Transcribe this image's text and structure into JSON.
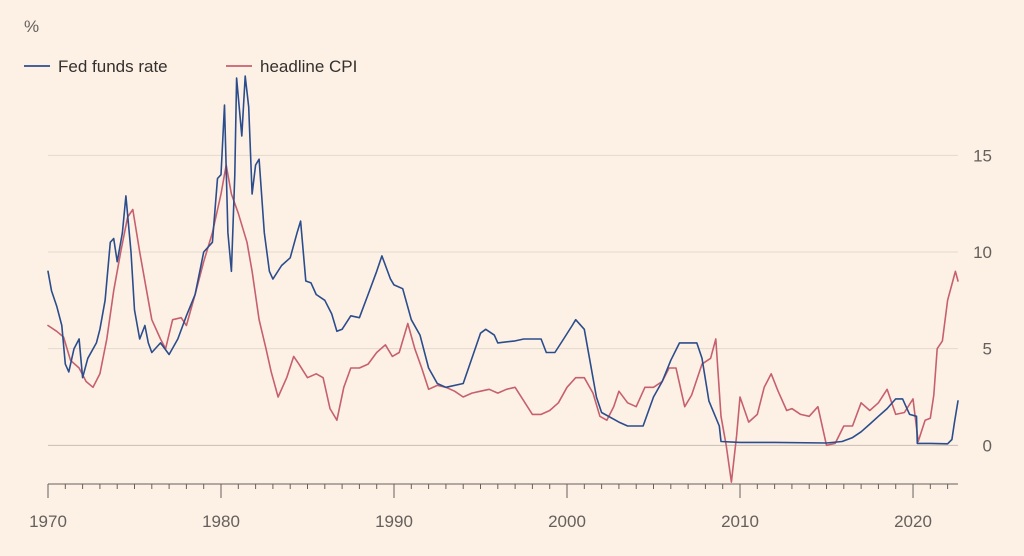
{
  "chart_data": {
    "type": "line",
    "unit_label": "%",
    "x_range": [
      1970,
      2022.6
    ],
    "ylim": [
      -2,
      19
    ],
    "y_ticks": [
      0,
      5,
      10,
      15
    ],
    "x_ticks": [
      1970,
      1980,
      1990,
      2000,
      2010,
      2020
    ],
    "grid": true,
    "legend_position": "top-left",
    "series": [
      {
        "name": "Fed funds rate",
        "color": "#2b4d8c",
        "points": [
          [
            1970.0,
            9.0
          ],
          [
            1970.2,
            8.0
          ],
          [
            1970.5,
            7.2
          ],
          [
            1970.8,
            6.2
          ],
          [
            1971.0,
            4.2
          ],
          [
            1971.2,
            3.8
          ],
          [
            1971.5,
            5.0
          ],
          [
            1971.8,
            5.5
          ],
          [
            1972.0,
            3.5
          ],
          [
            1972.3,
            4.5
          ],
          [
            1972.8,
            5.3
          ],
          [
            1973.0,
            6.0
          ],
          [
            1973.3,
            7.5
          ],
          [
            1973.6,
            10.5
          ],
          [
            1973.8,
            10.7
          ],
          [
            1974.0,
            9.5
          ],
          [
            1974.3,
            11.0
          ],
          [
            1974.5,
            12.9
          ],
          [
            1974.8,
            10.0
          ],
          [
            1975.0,
            7.0
          ],
          [
            1975.3,
            5.5
          ],
          [
            1975.6,
            6.2
          ],
          [
            1975.8,
            5.3
          ],
          [
            1976.0,
            4.8
          ],
          [
            1976.5,
            5.3
          ],
          [
            1977.0,
            4.7
          ],
          [
            1977.5,
            5.5
          ],
          [
            1978.0,
            6.7
          ],
          [
            1978.5,
            7.8
          ],
          [
            1979.0,
            10.0
          ],
          [
            1979.5,
            10.5
          ],
          [
            1979.8,
            13.8
          ],
          [
            1980.0,
            14.0
          ],
          [
            1980.2,
            17.6
          ],
          [
            1980.4,
            11.0
          ],
          [
            1980.6,
            9.0
          ],
          [
            1980.8,
            14.0
          ],
          [
            1980.9,
            19.0
          ],
          [
            1981.2,
            16.0
          ],
          [
            1981.4,
            19.1
          ],
          [
            1981.6,
            17.5
          ],
          [
            1981.8,
            13.0
          ],
          [
            1982.0,
            14.5
          ],
          [
            1982.2,
            14.8
          ],
          [
            1982.5,
            11.0
          ],
          [
            1982.8,
            9.0
          ],
          [
            1983.0,
            8.6
          ],
          [
            1983.5,
            9.3
          ],
          [
            1984.0,
            9.7
          ],
          [
            1984.4,
            11.0
          ],
          [
            1984.6,
            11.6
          ],
          [
            1984.9,
            8.5
          ],
          [
            1985.2,
            8.4
          ],
          [
            1985.5,
            7.8
          ],
          [
            1986.0,
            7.5
          ],
          [
            1986.4,
            6.8
          ],
          [
            1986.7,
            5.9
          ],
          [
            1987.0,
            6.0
          ],
          [
            1987.5,
            6.7
          ],
          [
            1988.0,
            6.6
          ],
          [
            1988.5,
            7.8
          ],
          [
            1989.0,
            9.0
          ],
          [
            1989.3,
            9.8
          ],
          [
            1989.8,
            8.6
          ],
          [
            1990.0,
            8.3
          ],
          [
            1990.5,
            8.1
          ],
          [
            1991.0,
            6.5
          ],
          [
            1991.5,
            5.7
          ],
          [
            1992.0,
            4.0
          ],
          [
            1992.5,
            3.2
          ],
          [
            1993.0,
            3.0
          ],
          [
            1994.0,
            3.2
          ],
          [
            1994.5,
            4.5
          ],
          [
            1995.0,
            5.8
          ],
          [
            1995.3,
            6.0
          ],
          [
            1995.8,
            5.7
          ],
          [
            1996.0,
            5.3
          ],
          [
            1997.0,
            5.4
          ],
          [
            1997.5,
            5.5
          ],
          [
            1998.5,
            5.5
          ],
          [
            1998.8,
            4.8
          ],
          [
            1999.3,
            4.8
          ],
          [
            1999.8,
            5.5
          ],
          [
            2000.3,
            6.2
          ],
          [
            2000.5,
            6.5
          ],
          [
            2001.0,
            6.0
          ],
          [
            2001.3,
            4.5
          ],
          [
            2001.7,
            2.5
          ],
          [
            2002.0,
            1.7
          ],
          [
            2003.0,
            1.2
          ],
          [
            2003.5,
            1.0
          ],
          [
            2004.4,
            1.0
          ],
          [
            2005.0,
            2.5
          ],
          [
            2005.5,
            3.3
          ],
          [
            2006.0,
            4.4
          ],
          [
            2006.5,
            5.3
          ],
          [
            2007.5,
            5.3
          ],
          [
            2007.8,
            4.5
          ],
          [
            2008.2,
            2.3
          ],
          [
            2008.8,
            1.0
          ],
          [
            2008.9,
            0.2
          ],
          [
            2010.0,
            0.15
          ],
          [
            2012.0,
            0.15
          ],
          [
            2015.0,
            0.12
          ],
          [
            2015.9,
            0.2
          ],
          [
            2016.5,
            0.4
          ],
          [
            2017.0,
            0.7
          ],
          [
            2017.5,
            1.1
          ],
          [
            2018.0,
            1.5
          ],
          [
            2018.5,
            1.9
          ],
          [
            2019.0,
            2.4
          ],
          [
            2019.4,
            2.4
          ],
          [
            2019.8,
            1.6
          ],
          [
            2020.2,
            1.5
          ],
          [
            2020.25,
            0.1
          ],
          [
            2021.0,
            0.1
          ],
          [
            2022.0,
            0.08
          ],
          [
            2022.25,
            0.3
          ],
          [
            2022.4,
            1.2
          ],
          [
            2022.6,
            2.3
          ]
        ]
      },
      {
        "name": "headline CPI",
        "color": "#c7606e",
        "points": [
          [
            1970.0,
            6.2
          ],
          [
            1970.5,
            5.9
          ],
          [
            1970.9,
            5.6
          ],
          [
            1971.3,
            4.4
          ],
          [
            1971.8,
            4.0
          ],
          [
            1972.2,
            3.3
          ],
          [
            1972.6,
            3.0
          ],
          [
            1973.0,
            3.7
          ],
          [
            1973.4,
            5.5
          ],
          [
            1973.8,
            8.0
          ],
          [
            1974.2,
            10.0
          ],
          [
            1974.6,
            11.8
          ],
          [
            1974.9,
            12.2
          ],
          [
            1975.3,
            10.0
          ],
          [
            1975.7,
            8.0
          ],
          [
            1976.0,
            6.5
          ],
          [
            1976.5,
            5.5
          ],
          [
            1976.8,
            5.0
          ],
          [
            1977.2,
            6.5
          ],
          [
            1977.7,
            6.6
          ],
          [
            1978.0,
            6.2
          ],
          [
            1978.5,
            7.8
          ],
          [
            1979.0,
            9.5
          ],
          [
            1979.5,
            11.0
          ],
          [
            1980.0,
            13.0
          ],
          [
            1980.3,
            14.5
          ],
          [
            1980.6,
            13.0
          ],
          [
            1981.0,
            12.0
          ],
          [
            1981.5,
            10.5
          ],
          [
            1981.8,
            9.0
          ],
          [
            1982.2,
            6.5
          ],
          [
            1982.6,
            5.0
          ],
          [
            1982.9,
            3.8
          ],
          [
            1983.3,
            2.5
          ],
          [
            1983.8,
            3.5
          ],
          [
            1984.2,
            4.6
          ],
          [
            1984.5,
            4.2
          ],
          [
            1985.0,
            3.5
          ],
          [
            1985.5,
            3.7
          ],
          [
            1985.9,
            3.5
          ],
          [
            1986.3,
            1.9
          ],
          [
            1986.7,
            1.3
          ],
          [
            1987.1,
            3.0
          ],
          [
            1987.5,
            4.0
          ],
          [
            1988.0,
            4.0
          ],
          [
            1988.5,
            4.2
          ],
          [
            1989.0,
            4.8
          ],
          [
            1989.5,
            5.2
          ],
          [
            1989.9,
            4.6
          ],
          [
            1990.3,
            4.8
          ],
          [
            1990.8,
            6.3
          ],
          [
            1991.2,
            5.0
          ],
          [
            1991.6,
            4.0
          ],
          [
            1992.0,
            2.9
          ],
          [
            1992.5,
            3.1
          ],
          [
            1993.0,
            3.0
          ],
          [
            1993.5,
            2.8
          ],
          [
            1994.0,
            2.5
          ],
          [
            1994.5,
            2.7
          ],
          [
            1995.0,
            2.8
          ],
          [
            1995.5,
            2.9
          ],
          [
            1996.0,
            2.7
          ],
          [
            1996.5,
            2.9
          ],
          [
            1997.0,
            3.0
          ],
          [
            1997.5,
            2.3
          ],
          [
            1998.0,
            1.6
          ],
          [
            1998.5,
            1.6
          ],
          [
            1999.0,
            1.8
          ],
          [
            1999.5,
            2.2
          ],
          [
            2000.0,
            3.0
          ],
          [
            2000.5,
            3.5
          ],
          [
            2001.0,
            3.5
          ],
          [
            2001.5,
            2.7
          ],
          [
            2001.9,
            1.5
          ],
          [
            2002.3,
            1.3
          ],
          [
            2002.7,
            2.0
          ],
          [
            2003.0,
            2.8
          ],
          [
            2003.5,
            2.2
          ],
          [
            2004.0,
            2.0
          ],
          [
            2004.5,
            3.0
          ],
          [
            2005.0,
            3.0
          ],
          [
            2005.5,
            3.3
          ],
          [
            2005.9,
            4.0
          ],
          [
            2006.3,
            4.0
          ],
          [
            2006.8,
            2.0
          ],
          [
            2007.2,
            2.6
          ],
          [
            2007.8,
            4.2
          ],
          [
            2008.3,
            4.5
          ],
          [
            2008.6,
            5.5
          ],
          [
            2008.9,
            1.5
          ],
          [
            2009.2,
            0.0
          ],
          [
            2009.5,
            -1.9
          ],
          [
            2009.8,
            0.5
          ],
          [
            2010.0,
            2.5
          ],
          [
            2010.5,
            1.2
          ],
          [
            2011.0,
            1.6
          ],
          [
            2011.4,
            3.0
          ],
          [
            2011.8,
            3.7
          ],
          [
            2012.2,
            2.8
          ],
          [
            2012.7,
            1.8
          ],
          [
            2013.0,
            1.9
          ],
          [
            2013.5,
            1.6
          ],
          [
            2014.0,
            1.5
          ],
          [
            2014.5,
            2.0
          ],
          [
            2015.0,
            0.0
          ],
          [
            2015.5,
            0.1
          ],
          [
            2016.0,
            1.0
          ],
          [
            2016.5,
            1.0
          ],
          [
            2017.0,
            2.2
          ],
          [
            2017.5,
            1.8
          ],
          [
            2018.0,
            2.2
          ],
          [
            2018.5,
            2.9
          ],
          [
            2019.0,
            1.6
          ],
          [
            2019.5,
            1.7
          ],
          [
            2020.0,
            2.4
          ],
          [
            2020.3,
            0.2
          ],
          [
            2020.7,
            1.3
          ],
          [
            2021.0,
            1.4
          ],
          [
            2021.2,
            2.6
          ],
          [
            2021.4,
            5.0
          ],
          [
            2021.7,
            5.4
          ],
          [
            2022.0,
            7.5
          ],
          [
            2022.3,
            8.5
          ],
          [
            2022.45,
            9.0
          ],
          [
            2022.6,
            8.5
          ]
        ]
      }
    ]
  }
}
